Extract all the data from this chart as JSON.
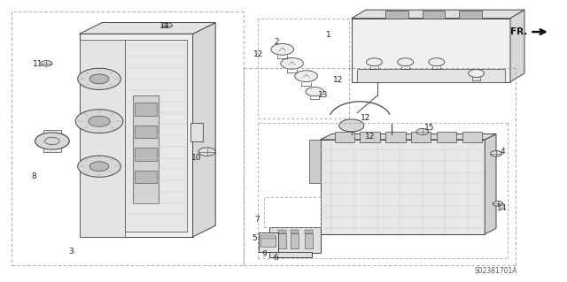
{
  "bg_color": "#ffffff",
  "line_color": "#444444",
  "diagram_code": "S02381701A"
}
